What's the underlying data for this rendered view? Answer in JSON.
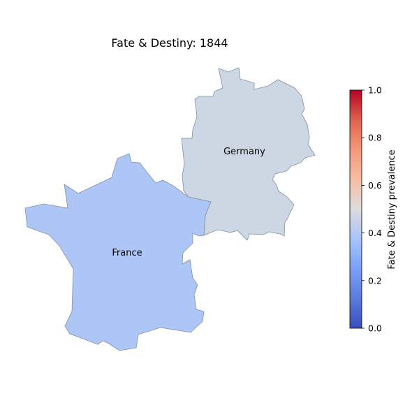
{
  "map": {
    "title": "Fate & Destiny: 1844",
    "regions": [
      {
        "name": "France",
        "label": "France",
        "value": 0.27,
        "fill": "#aec6f5"
      },
      {
        "name": "Germany",
        "label": "Germany",
        "value": 0.43,
        "fill": "#cdd7e3"
      }
    ],
    "border_color": "#7f8fa6"
  },
  "colorbar": {
    "label": "Fate & Destiny prevalence",
    "colormap": "coolwarm",
    "range": [
      0.0,
      1.0
    ],
    "ticks": [
      "0.0",
      "0.2",
      "0.4",
      "0.6",
      "0.8",
      "1.0"
    ]
  }
}
